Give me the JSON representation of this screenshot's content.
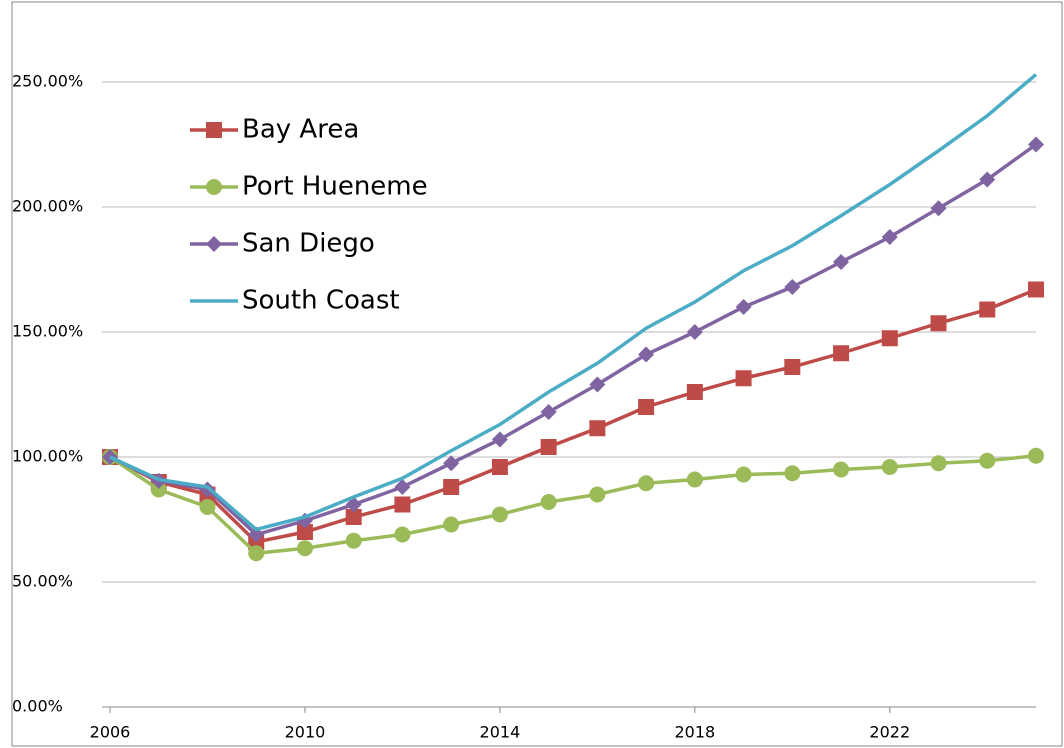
{
  "chart_data": {
    "type": "line",
    "x": [
      2006,
      2007,
      2008,
      2009,
      2010,
      2011,
      2012,
      2013,
      2014,
      2015,
      2016,
      2017,
      2018,
      2019,
      2020,
      2021,
      2022,
      2023,
      2024,
      2025
    ],
    "series": [
      {
        "name": "Bay Area",
        "color": "#be4b48",
        "marker": "square",
        "values": [
          100,
          90,
          85,
          66,
          70,
          76,
          81,
          88,
          96,
          104,
          111.5,
          120,
          126,
          131.5,
          136,
          141.5,
          147.5,
          153.5,
          159,
          167
        ]
      },
      {
        "name": "Port Hueneme",
        "color": "#9bbb59",
        "marker": "circle",
        "values": [
          100,
          87,
          80,
          61.5,
          63.5,
          66.5,
          69,
          73,
          77,
          82,
          85,
          89.5,
          91,
          93,
          93.5,
          95,
          96,
          97.5,
          98.5,
          100.5
        ]
      },
      {
        "name": "San Diego",
        "color": "#8064a2",
        "marker": "diamond",
        "values": [
          100,
          90.5,
          87,
          69,
          74.5,
          81,
          88,
          97.5,
          107,
          118,
          129,
          141,
          150,
          160,
          168,
          178,
          188,
          199.5,
          211,
          225
        ]
      },
      {
        "name": "South Coast",
        "color": "#4bacc6",
        "marker": "none",
        "values": [
          100,
          91,
          88,
          71,
          76,
          84,
          91.5,
          102.5,
          113,
          126,
          137.5,
          151.5,
          162,
          174.5,
          184.5,
          196.5,
          209,
          222.5,
          236.5,
          253
        ]
      }
    ],
    "xlim": [
      2006,
      2025
    ],
    "xticks": [
      2006,
      2010,
      2014,
      2018,
      2022
    ],
    "ylim": [
      0,
      275
    ],
    "yticks": [
      {
        "value": 0,
        "label": "0.00%"
      },
      {
        "value": 50,
        "label": "50.00%"
      },
      {
        "value": 100,
        "label": "100.00%"
      },
      {
        "value": 150,
        "label": "150.00%"
      },
      {
        "value": 200,
        "label": "200.00%"
      },
      {
        "value": 250,
        "label": "250.00%"
      }
    ],
    "grid": true,
    "legend": "upper left"
  }
}
